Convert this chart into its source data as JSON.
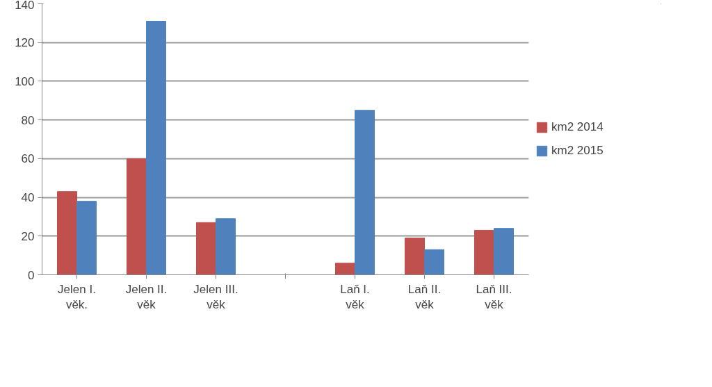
{
  "chart_data": {
    "type": "bar",
    "categories": [
      "Jelen I. věk.",
      "Jelen II. věk",
      "Jelen III. věk",
      null,
      "Laň I. věk",
      "Laň II. věk",
      "Laň III. věk"
    ],
    "series": [
      {
        "name": "km2 2014",
        "color": "#c0504d",
        "values": [
          43,
          60,
          27,
          null,
          6,
          19,
          23
        ]
      },
      {
        "name": "km2 2015",
        "color": "#4f81bd",
        "values": [
          38,
          131,
          29,
          null,
          85,
          13,
          24
        ]
      }
    ],
    "ylim": [
      0,
      140
    ],
    "yticks": [
      0,
      20,
      40,
      60,
      80,
      100,
      120,
      140
    ],
    "grid": "y",
    "legend": "right"
  }
}
